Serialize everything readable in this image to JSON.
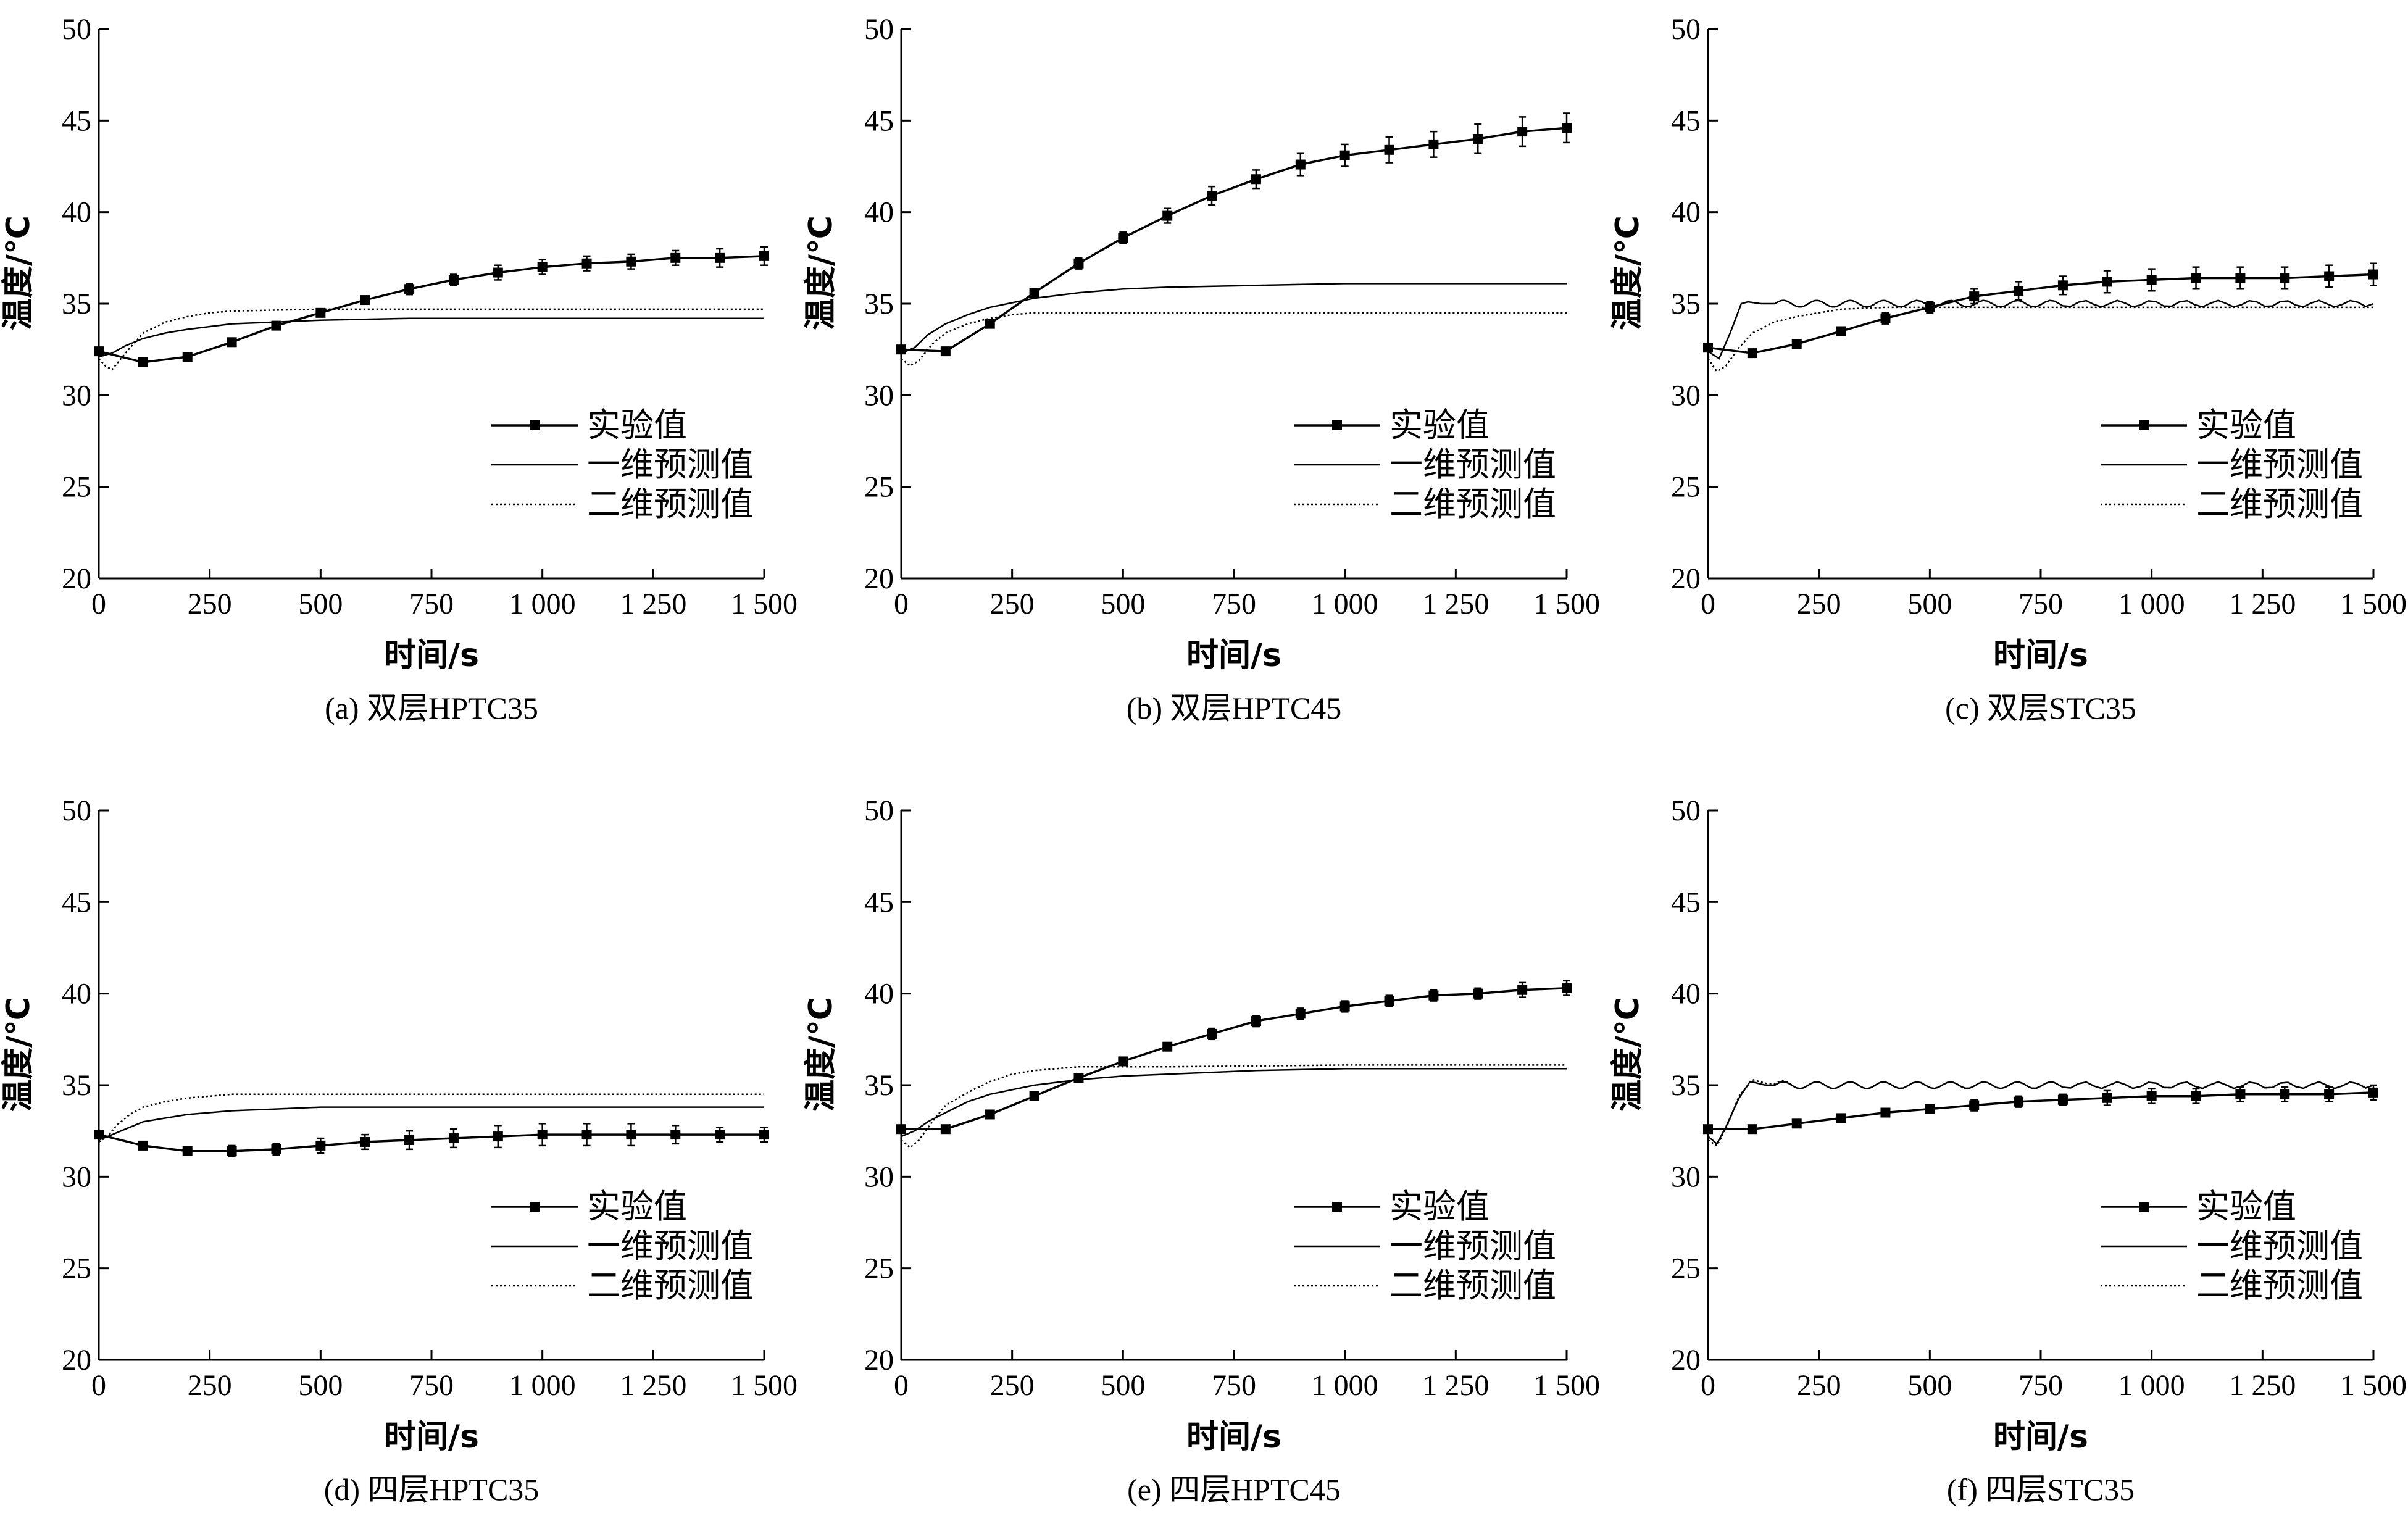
{
  "figure": {
    "y_label": "温度/℃",
    "x_label": "时间/s"
  },
  "legend_labels": [
    "实验值",
    "一维预测值",
    "二维预测值"
  ],
  "chart_data": [
    {
      "type": "line",
      "caption": "(a) 双层HPTC35",
      "xlabel": "时间/s",
      "ylabel": "温度/℃",
      "xlim": [
        0,
        1500
      ],
      "ylim": [
        20,
        50
      ],
      "x_ticks": [
        0,
        250,
        500,
        750,
        1000,
        1250,
        1500
      ],
      "x_tick_labels": [
        "0",
        "250",
        "500",
        "750",
        "1 000",
        "1 250",
        "1 500"
      ],
      "y_ticks": [
        20,
        25,
        30,
        35,
        40,
        45,
        50
      ],
      "legend": "center-right",
      "series": [
        {
          "name": "实验值",
          "style": "marker-line",
          "x": [
            0,
            100,
            200,
            300,
            400,
            500,
            600,
            700,
            800,
            900,
            1000,
            1100,
            1200,
            1300,
            1400,
            1500
          ],
          "y": [
            32.4,
            31.8,
            32.1,
            32.9,
            33.8,
            34.5,
            35.2,
            35.8,
            36.3,
            36.7,
            37.0,
            37.2,
            37.3,
            37.5,
            37.5,
            37.6
          ],
          "err": [
            0.1,
            0.1,
            0.1,
            0.1,
            0.2,
            0.2,
            0.2,
            0.3,
            0.3,
            0.4,
            0.4,
            0.4,
            0.4,
            0.4,
            0.5,
            0.5
          ]
        },
        {
          "name": "一维预测值",
          "style": "solid",
          "x": [
            0,
            30,
            60,
            100,
            150,
            200,
            300,
            400,
            500,
            700,
            1000,
            1500
          ],
          "y": [
            32.1,
            32.3,
            32.7,
            33.1,
            33.4,
            33.6,
            33.9,
            34.0,
            34.1,
            34.2,
            34.2,
            34.2
          ]
        },
        {
          "name": "二维预测值",
          "style": "dotted",
          "x": [
            0,
            15,
            30,
            60,
            100,
            150,
            200,
            250,
            300,
            500,
            800,
            1500
          ],
          "y": [
            32.0,
            31.6,
            31.4,
            32.3,
            33.4,
            34.0,
            34.3,
            34.5,
            34.6,
            34.7,
            34.7,
            34.7
          ]
        }
      ]
    },
    {
      "type": "line",
      "caption": "(b) 双层HPTC45",
      "xlabel": "时间/s",
      "ylabel": "温度/℃",
      "xlim": [
        0,
        1500
      ],
      "ylim": [
        20,
        50
      ],
      "x_ticks": [
        0,
        250,
        500,
        750,
        1000,
        1250,
        1500
      ],
      "x_tick_labels": [
        "0",
        "250",
        "500",
        "750",
        "1 000",
        "1 250",
        "1 500"
      ],
      "y_ticks": [
        20,
        25,
        30,
        35,
        40,
        45,
        50
      ],
      "legend": "center-right",
      "series": [
        {
          "name": "实验值",
          "style": "marker-line",
          "x": [
            0,
            100,
            200,
            300,
            400,
            500,
            600,
            700,
            800,
            900,
            1000,
            1100,
            1200,
            1300,
            1400,
            1500
          ],
          "y": [
            32.5,
            32.4,
            33.9,
            35.6,
            37.2,
            38.6,
            39.8,
            40.9,
            41.8,
            42.6,
            43.1,
            43.4,
            43.7,
            44.0,
            44.4,
            44.6
          ],
          "err": [
            0.1,
            0.1,
            0.2,
            0.2,
            0.3,
            0.3,
            0.4,
            0.5,
            0.5,
            0.6,
            0.6,
            0.7,
            0.7,
            0.8,
            0.8,
            0.8
          ]
        },
        {
          "name": "一维预测值",
          "style": "solid",
          "x": [
            0,
            30,
            60,
            100,
            150,
            200,
            300,
            400,
            500,
            600,
            800,
            1000,
            1500
          ],
          "y": [
            32.3,
            32.6,
            33.3,
            33.9,
            34.4,
            34.8,
            35.3,
            35.6,
            35.8,
            35.9,
            36.0,
            36.1,
            36.1
          ]
        },
        {
          "name": "二维预测值",
          "style": "dotted",
          "x": [
            0,
            20,
            40,
            70,
            100,
            150,
            200,
            250,
            300,
            400,
            600,
            1000,
            1500
          ],
          "y": [
            32.0,
            31.6,
            31.9,
            32.8,
            33.4,
            33.9,
            34.2,
            34.4,
            34.5,
            34.5,
            34.5,
            34.5,
            34.5
          ]
        }
      ]
    },
    {
      "type": "line",
      "caption": "(c) 双层STC35",
      "xlabel": "时间/s",
      "ylabel": "温度/℃",
      "xlim": [
        0,
        1500
      ],
      "ylim": [
        20,
        50
      ],
      "x_ticks": [
        0,
        250,
        500,
        750,
        1000,
        1250,
        1500
      ],
      "x_tick_labels": [
        "0",
        "250",
        "500",
        "750",
        "1 000",
        "1 250",
        "1 500"
      ],
      "y_ticks": [
        20,
        25,
        30,
        35,
        40,
        45,
        50
      ],
      "legend": "center-right",
      "series": [
        {
          "name": "实验值",
          "style": "marker-line",
          "x": [
            0,
            100,
            200,
            300,
            400,
            500,
            600,
            700,
            800,
            900,
            1000,
            1100,
            1200,
            1300,
            1400,
            1500
          ],
          "y": [
            32.6,
            32.3,
            32.8,
            33.5,
            34.2,
            34.8,
            35.4,
            35.7,
            36.0,
            36.2,
            36.3,
            36.4,
            36.4,
            36.4,
            36.5,
            36.6
          ],
          "err": [
            0.1,
            0.1,
            0.2,
            0.2,
            0.3,
            0.3,
            0.4,
            0.5,
            0.5,
            0.6,
            0.6,
            0.6,
            0.6,
            0.6,
            0.6,
            0.6
          ]
        },
        {
          "name": "一维预测值",
          "style": "solid-oscillating",
          "x": [
            0,
            25,
            50,
            75,
            90,
            120,
            200,
            400,
            800,
            1500
          ],
          "y": [
            32.4,
            32.0,
            33.4,
            35.0,
            35.1,
            35.0,
            35.0,
            35.0,
            35.0,
            35.0
          ]
        },
        {
          "name": "二维预测值",
          "style": "dotted",
          "x": [
            0,
            20,
            40,
            70,
            100,
            150,
            200,
            250,
            300,
            400,
            600,
            1000,
            1500
          ],
          "y": [
            32.0,
            31.3,
            31.6,
            32.6,
            33.4,
            34.0,
            34.3,
            34.5,
            34.7,
            34.8,
            34.8,
            34.8,
            34.8
          ]
        }
      ]
    },
    {
      "type": "line",
      "caption": "(d) 四层HPTC35",
      "xlabel": "时间/s",
      "ylabel": "温度/℃",
      "xlim": [
        0,
        1500
      ],
      "ylim": [
        20,
        50
      ],
      "x_ticks": [
        0,
        250,
        500,
        750,
        1000,
        1250,
        1500
      ],
      "x_tick_labels": [
        "0",
        "250",
        "500",
        "750",
        "1 000",
        "1 250",
        "1 500"
      ],
      "y_ticks": [
        20,
        25,
        30,
        35,
        40,
        45,
        50
      ],
      "legend": "center-right",
      "series": [
        {
          "name": "实验值",
          "style": "marker-line",
          "x": [
            0,
            100,
            200,
            300,
            400,
            500,
            600,
            700,
            800,
            900,
            1000,
            1100,
            1200,
            1300,
            1400,
            1500
          ],
          "y": [
            32.3,
            31.7,
            31.4,
            31.4,
            31.5,
            31.7,
            31.9,
            32.0,
            32.1,
            32.2,
            32.3,
            32.3,
            32.3,
            32.3,
            32.3,
            32.3
          ],
          "err": [
            0.1,
            0.2,
            0.2,
            0.3,
            0.3,
            0.4,
            0.4,
            0.5,
            0.5,
            0.6,
            0.6,
            0.6,
            0.6,
            0.5,
            0.4,
            0.4
          ]
        },
        {
          "name": "一维预测值",
          "style": "solid",
          "x": [
            0,
            30,
            60,
            100,
            150,
            200,
            300,
            400,
            500,
            700,
            1000,
            1500
          ],
          "y": [
            32.0,
            32.3,
            32.6,
            33.0,
            33.2,
            33.4,
            33.6,
            33.7,
            33.8,
            33.8,
            33.8,
            33.8
          ]
        },
        {
          "name": "二维预测值",
          "style": "dotted",
          "x": [
            0,
            20,
            40,
            70,
            100,
            150,
            200,
            250,
            300,
            400,
            600,
            1000,
            1500
          ],
          "y": [
            31.9,
            32.2,
            32.8,
            33.4,
            33.8,
            34.1,
            34.3,
            34.4,
            34.5,
            34.5,
            34.5,
            34.5,
            34.5
          ]
        }
      ]
    },
    {
      "type": "line",
      "caption": "(e) 四层HPTC45",
      "xlabel": "时间/s",
      "ylabel": "温度/℃",
      "xlim": [
        0,
        1500
      ],
      "ylim": [
        20,
        50
      ],
      "x_ticks": [
        0,
        250,
        500,
        750,
        1000,
        1250,
        1500
      ],
      "x_tick_labels": [
        "0",
        "250",
        "500",
        "750",
        "1 000",
        "1 250",
        "1 500"
      ],
      "y_ticks": [
        20,
        25,
        30,
        35,
        40,
        45,
        50
      ],
      "legend": "center-right",
      "series": [
        {
          "name": "实验值",
          "style": "marker-line",
          "x": [
            0,
            100,
            200,
            300,
            400,
            500,
            600,
            700,
            800,
            900,
            1000,
            1100,
            1200,
            1300,
            1400,
            1500
          ],
          "y": [
            32.6,
            32.6,
            33.4,
            34.4,
            35.4,
            36.3,
            37.1,
            37.8,
            38.5,
            38.9,
            39.3,
            39.6,
            39.9,
            40.0,
            40.2,
            40.3
          ],
          "err": [
            0.1,
            0.1,
            0.1,
            0.2,
            0.2,
            0.2,
            0.2,
            0.3,
            0.3,
            0.3,
            0.3,
            0.3,
            0.3,
            0.3,
            0.4,
            0.4
          ]
        },
        {
          "name": "一维预测值",
          "style": "solid",
          "x": [
            0,
            30,
            60,
            100,
            150,
            200,
            300,
            400,
            500,
            600,
            800,
            1000,
            1500
          ],
          "y": [
            32.2,
            32.5,
            33.0,
            33.5,
            34.1,
            34.5,
            35.0,
            35.3,
            35.5,
            35.6,
            35.8,
            35.9,
            35.9
          ]
        },
        {
          "name": "二维预测值",
          "style": "dotted",
          "x": [
            0,
            20,
            40,
            70,
            100,
            150,
            200,
            250,
            300,
            400,
            600,
            1000,
            1500
          ],
          "y": [
            32.0,
            31.6,
            32.0,
            33.0,
            33.9,
            34.6,
            35.2,
            35.6,
            35.8,
            36.0,
            36.0,
            36.1,
            36.1
          ]
        }
      ]
    },
    {
      "type": "line",
      "caption": "(f) 四层STC35",
      "xlabel": "时间/s",
      "ylabel": "温度/℃",
      "xlim": [
        0,
        1500
      ],
      "ylim": [
        20,
        50
      ],
      "x_ticks": [
        0,
        250,
        500,
        750,
        1000,
        1250,
        1500
      ],
      "x_tick_labels": [
        "0",
        "250",
        "500",
        "750",
        "1 000",
        "1 250",
        "1 500"
      ],
      "y_ticks": [
        20,
        25,
        30,
        35,
        40,
        45,
        50
      ],
      "legend": "center-right",
      "series": [
        {
          "name": "实验值",
          "style": "marker-line",
          "x": [
            0,
            100,
            200,
            300,
            400,
            500,
            600,
            700,
            800,
            900,
            1000,
            1100,
            1200,
            1300,
            1400,
            1500
          ],
          "y": [
            32.6,
            32.6,
            32.9,
            33.2,
            33.5,
            33.7,
            33.9,
            34.1,
            34.2,
            34.3,
            34.4,
            34.4,
            34.5,
            34.5,
            34.5,
            34.6
          ],
          "err": [
            0.1,
            0.1,
            0.1,
            0.2,
            0.2,
            0.2,
            0.3,
            0.3,
            0.3,
            0.4,
            0.4,
            0.4,
            0.4,
            0.4,
            0.4,
            0.4
          ]
        },
        {
          "name": "一维预测值",
          "style": "solid-oscillating",
          "x": [
            0,
            20,
            40,
            70,
            95,
            130,
            200,
            400,
            800,
            1500
          ],
          "y": [
            32.2,
            31.8,
            32.7,
            34.3,
            35.2,
            35.0,
            35.0,
            35.0,
            35.0,
            35.0
          ]
        },
        {
          "name": "二维预测值",
          "style": "dotted-oscillating",
          "x": [
            0,
            20,
            40,
            70,
            100,
            130,
            200,
            400,
            800,
            1500
          ],
          "y": [
            32.0,
            31.7,
            32.6,
            34.4,
            35.3,
            35.1,
            35.0,
            35.0,
            35.0,
            35.0
          ]
        }
      ]
    }
  ]
}
